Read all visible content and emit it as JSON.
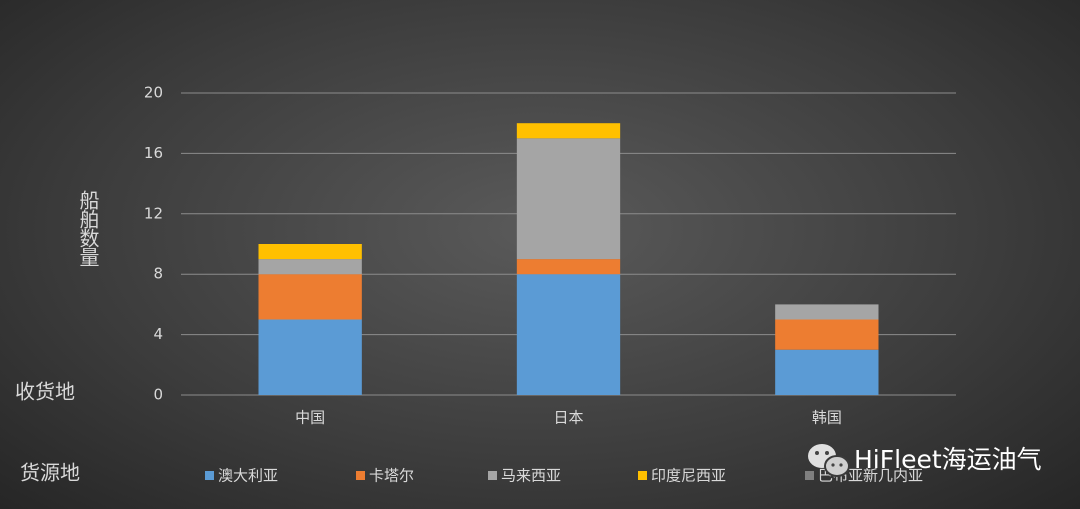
{
  "chart_data": {
    "type": "stacked_bar",
    "y_label": "船舶数量",
    "x_label": "收货地",
    "legend_title": "货源地",
    "categories": [
      "中国",
      "日本",
      "韩国"
    ],
    "series": [
      {
        "name": "澳大利亚",
        "color": "#5b9bd5",
        "values": [
          5,
          8,
          3
        ]
      },
      {
        "name": "卡塔尔",
        "color": "#ed7d31",
        "values": [
          3,
          1,
          2
        ]
      },
      {
        "name": "马来西亚",
        "color": "#a5a5a5",
        "values": [
          1,
          8,
          1
        ]
      },
      {
        "name": "印度尼西亚",
        "color": "#ffc000",
        "values": [
          1,
          1,
          0
        ]
      },
      {
        "name": "巴布亚新几内亚",
        "color": "#7f7f7f",
        "values": [
          0,
          0,
          0
        ]
      }
    ],
    "ylim": [
      0,
      20
    ],
    "yticks": [
      0,
      4,
      8,
      12,
      16,
      20
    ],
    "grid": true,
    "legend_position": "bottom"
  },
  "watermark": "HiFleet海运油气"
}
